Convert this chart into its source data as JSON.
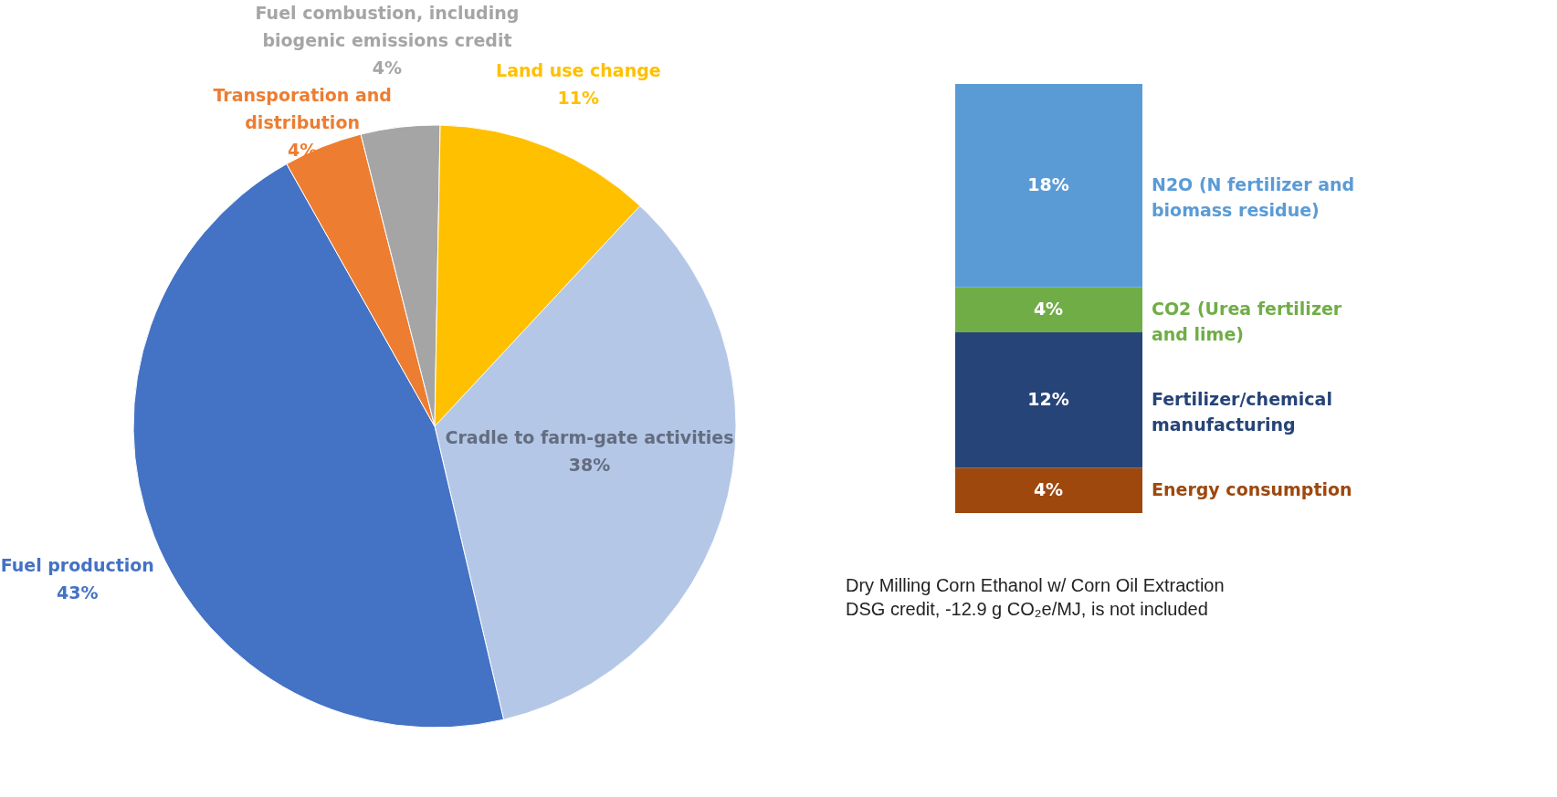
{
  "chart_data": [
    {
      "type": "pie",
      "categories": [
        "Cradle to farm-gate activities",
        "Fuel production",
        "Transporation and distribution",
        "Fuel combustion, including biogenic emissions credit",
        "Land use change"
      ],
      "values": [
        38,
        43,
        4,
        4,
        11
      ],
      "value_labels": [
        "38%",
        "43%",
        "4%",
        "4%",
        "11%"
      ],
      "colors": [
        "#b4c7e7",
        "#4472c4",
        "#ed7d31",
        "#a5a5a5",
        "#ffc000"
      ],
      "legend": false
    },
    {
      "type": "bar",
      "stacked": true,
      "categories": [
        null
      ],
      "legend": false,
      "series": [
        {
          "name": "Energy consumption",
          "color": "#9e480e",
          "values": [
            4
          ],
          "value_labels": [
            "4%"
          ]
        },
        {
          "name": "Fertilizer/chemical manufacturing",
          "color": "#264478",
          "values": [
            12
          ],
          "value_labels": [
            "12%"
          ]
        },
        {
          "name": "CO2 (Urea fertilizer and lime)",
          "color": "#70ad47",
          "values": [
            4
          ],
          "value_labels": [
            "4%"
          ]
        },
        {
          "name": "N2O (N fertilizer and biomass residue)",
          "color": "#5b9bd5",
          "values": [
            18
          ],
          "value_labels": [
            "18%"
          ]
        }
      ],
      "annotations": [
        "Dry Milling Corn Ethanol w/ Corn Oil Extraction",
        "DSG credit, -12.9 g CO₂e/MJ, is not included"
      ]
    }
  ]
}
